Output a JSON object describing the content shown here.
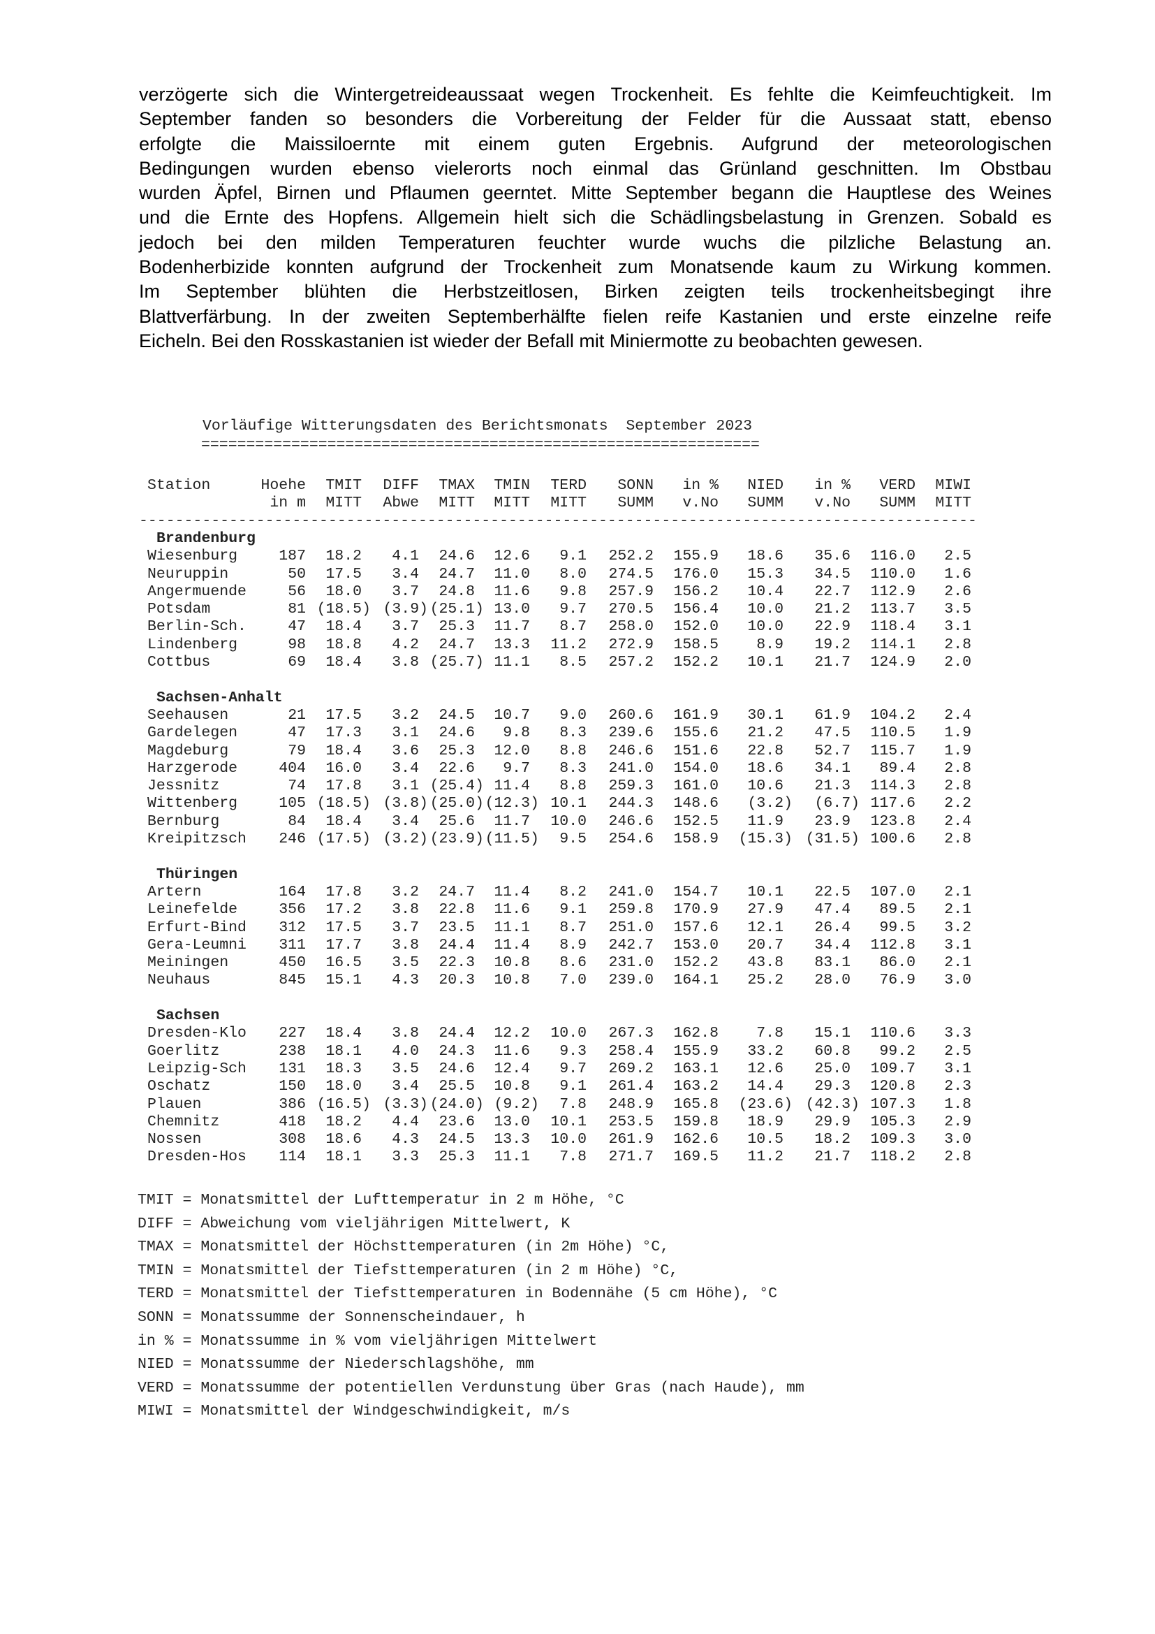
{
  "paragraph_lines": [
    "verzögerte sich die Wintergetreideaussaat wegen Trockenheit. Es fehlte die Keimfeuchtigkeit. Im",
    "September fanden so besonders die Vorbereitung der Felder für die Aussaat statt, ebenso",
    "erfolgte die Maissiloernte mit einem guten Ergebnis. Aufgrund der meteorologischen",
    "Bedingungen wurden ebenso vielerorts noch einmal das Grünland geschnitten. Im Obstbau",
    "wurden Äpfel, Birnen und Pflaumen geerntet. Mitte September begann die Hauptlese des Weines",
    "und die Ernte des Hopfens. Allgemein hielt sich die Schädlingsbelastung in Grenzen. Sobald es",
    "jedoch bei den milden Temperaturen feuchter wurde wuchs die pilzliche Belastung an.",
    "Bodenherbizide konnten aufgrund der Trockenheit zum Monatsende kaum zu Wirkung kommen.",
    "Im September blühten die Herbstzeitlosen, Birken zeigten teils trockenheitsbegingt ihre",
    "Blattverfärbung. In der zweiten Septemberhälfte fielen reife Kastanien und erste einzelne reife",
    "Eicheln. Bei den Rosskastanien ist wieder der Befall mit Miniermotte zu beobachten gewesen."
  ],
  "table": {
    "title": "Vorläufige Witterungsdaten des Berichtsmonats  September 2023",
    "underline": "==============================================================",
    "separator": "---------------------------------------------------------------------------------------------",
    "header_row1": [
      "Station",
      "Hoehe",
      "TMIT",
      "DIFF",
      "TMAX",
      "TMIN",
      "TERD",
      "SONN",
      "in %",
      "NIED",
      "in %",
      "VERD",
      "MIWI"
    ],
    "header_row2": [
      "",
      "in m",
      "MITT",
      "Abwe",
      "MITT",
      "MITT",
      "MITT",
      "SUMM",
      "v.No",
      "SUMM",
      "v.No",
      "SUMM",
      "MITT"
    ],
    "groups": [
      {
        "name": "Brandenburg",
        "rows": [
          [
            "Wiesenburg",
            "187",
            "18.2",
            "4.1",
            "24.6",
            "12.6",
            "9.1",
            "252.2",
            "155.9",
            "18.6",
            "35.6",
            "116.0",
            "2.5"
          ],
          [
            "Neuruppin",
            "50",
            "17.5",
            "3.4",
            "24.7",
            "11.0",
            "8.0",
            "274.5",
            "176.0",
            "15.3",
            "34.5",
            "110.0",
            "1.6"
          ],
          [
            "Angermuende",
            "56",
            "18.0",
            "3.7",
            "24.8",
            "11.6",
            "9.8",
            "257.9",
            "156.2",
            "10.4",
            "22.7",
            "112.9",
            "2.6"
          ],
          [
            "Potsdam",
            "81",
            "(18.5)",
            "(3.9)",
            "(25.1)",
            "13.0",
            "9.7",
            "270.5",
            "156.4",
            "10.0",
            "21.2",
            "113.7",
            "3.5"
          ],
          [
            "Berlin-Sch.",
            "47",
            "18.4",
            "3.7",
            "25.3",
            "11.7",
            "8.7",
            "258.0",
            "152.0",
            "10.0",
            "22.9",
            "118.4",
            "3.1"
          ],
          [
            "Lindenberg",
            "98",
            "18.8",
            "4.2",
            "24.7",
            "13.3",
            "11.2",
            "272.9",
            "158.5",
            "8.9",
            "19.2",
            "114.1",
            "2.8"
          ],
          [
            "Cottbus",
            "69",
            "18.4",
            "3.8",
            "(25.7)",
            "11.1",
            "8.5",
            "257.2",
            "152.2",
            "10.1",
            "21.7",
            "124.9",
            "2.0"
          ]
        ]
      },
      {
        "name": "Sachsen-Anhalt",
        "rows": [
          [
            "Seehausen",
            "21",
            "17.5",
            "3.2",
            "24.5",
            "10.7",
            "9.0",
            "260.6",
            "161.9",
            "30.1",
            "61.9",
            "104.2",
            "2.4"
          ],
          [
            "Gardelegen",
            "47",
            "17.3",
            "3.1",
            "24.6",
            "9.8",
            "8.3",
            "239.6",
            "155.6",
            "21.2",
            "47.5",
            "110.5",
            "1.9"
          ],
          [
            "Magdeburg",
            "79",
            "18.4",
            "3.6",
            "25.3",
            "12.0",
            "8.8",
            "246.6",
            "151.6",
            "22.8",
            "52.7",
            "115.7",
            "1.9"
          ],
          [
            "Harzgerode",
            "404",
            "16.0",
            "3.4",
            "22.6",
            "9.7",
            "8.3",
            "241.0",
            "154.0",
            "18.6",
            "34.1",
            "89.4",
            "2.8"
          ],
          [
            "Jessnitz",
            "74",
            "17.8",
            "3.1",
            "(25.4)",
            "11.4",
            "8.8",
            "259.3",
            "161.0",
            "10.6",
            "21.3",
            "114.3",
            "2.8"
          ],
          [
            "Wittenberg",
            "105",
            "(18.5)",
            "(3.8)",
            "(25.0)",
            "(12.3)",
            "10.1",
            "244.3",
            "148.6",
            "(3.2)",
            "(6.7)",
            "117.6",
            "2.2"
          ],
          [
            "Bernburg",
            "84",
            "18.4",
            "3.4",
            "25.6",
            "11.7",
            "10.0",
            "246.6",
            "152.5",
            "11.9",
            "23.9",
            "123.8",
            "2.4"
          ],
          [
            "Kreipitzsch",
            "246",
            "(17.5)",
            "(3.2)",
            "(23.9)",
            "(11.5)",
            "9.5",
            "254.6",
            "158.9",
            "(15.3)",
            "(31.5)",
            "100.6",
            "2.8"
          ]
        ]
      },
      {
        "name": "Thüringen",
        "rows": [
          [
            "Artern",
            "164",
            "17.8",
            "3.2",
            "24.7",
            "11.4",
            "8.2",
            "241.0",
            "154.7",
            "10.1",
            "22.5",
            "107.0",
            "2.1"
          ],
          [
            "Leinefelde",
            "356",
            "17.2",
            "3.8",
            "22.8",
            "11.6",
            "9.1",
            "259.8",
            "170.9",
            "27.9",
            "47.4",
            "89.5",
            "2.1"
          ],
          [
            "Erfurt-Bind",
            "312",
            "17.5",
            "3.7",
            "23.5",
            "11.1",
            "8.7",
            "251.0",
            "157.6",
            "12.1",
            "26.4",
            "99.5",
            "3.2"
          ],
          [
            "Gera-Leumni",
            "311",
            "17.7",
            "3.8",
            "24.4",
            "11.4",
            "8.9",
            "242.7",
            "153.0",
            "20.7",
            "34.4",
            "112.8",
            "3.1"
          ],
          [
            "Meiningen",
            "450",
            "16.5",
            "3.5",
            "22.3",
            "10.8",
            "8.6",
            "231.0",
            "152.2",
            "43.8",
            "83.1",
            "86.0",
            "2.1"
          ],
          [
            "Neuhaus",
            "845",
            "15.1",
            "4.3",
            "20.3",
            "10.8",
            "7.0",
            "239.0",
            "164.1",
            "25.2",
            "28.0",
            "76.9",
            "3.0"
          ]
        ]
      },
      {
        "name": "Sachsen",
        "rows": [
          [
            "Dresden-Klo",
            "227",
            "18.4",
            "3.8",
            "24.4",
            "12.2",
            "10.0",
            "267.3",
            "162.8",
            "7.8",
            "15.1",
            "110.6",
            "3.3"
          ],
          [
            "Goerlitz",
            "238",
            "18.1",
            "4.0",
            "24.3",
            "11.6",
            "9.3",
            "258.4",
            "155.9",
            "33.2",
            "60.8",
            "99.2",
            "2.5"
          ],
          [
            "Leipzig-Sch",
            "131",
            "18.3",
            "3.5",
            "24.6",
            "12.4",
            "9.7",
            "269.2",
            "163.1",
            "12.6",
            "25.0",
            "109.7",
            "3.1"
          ],
          [
            "Oschatz",
            "150",
            "18.0",
            "3.4",
            "25.5",
            "10.8",
            "9.1",
            "261.4",
            "163.2",
            "14.4",
            "29.3",
            "120.8",
            "2.3"
          ],
          [
            "Plauen",
            "386",
            "(16.5)",
            "(3.3)",
            "(24.0)",
            "(9.2)",
            "7.8",
            "248.9",
            "165.8",
            "(23.6)",
            "(42.3)",
            "107.3",
            "1.8"
          ],
          [
            "Chemnitz",
            "418",
            "18.2",
            "4.4",
            "23.6",
            "13.0",
            "10.1",
            "253.5",
            "159.8",
            "18.9",
            "29.9",
            "105.3",
            "2.9"
          ],
          [
            "Nossen",
            "308",
            "18.6",
            "4.3",
            "24.5",
            "13.3",
            "10.0",
            "261.9",
            "162.6",
            "10.5",
            "18.2",
            "109.3",
            "3.0"
          ],
          [
            "Dresden-Hos",
            "114",
            "18.1",
            "3.3",
            "25.3",
            "11.1",
            "7.8",
            "271.7",
            "169.5",
            "11.2",
            "21.7",
            "118.2",
            "2.8"
          ]
        ]
      }
    ]
  },
  "legend": [
    "TMIT = Monatsmittel der Lufttemperatur in 2 m Höhe, °C",
    "DIFF = Abweichung vom vieljährigen Mittelwert, K",
    "TMAX = Monatsmittel der Höchsttemperaturen (in 2m Höhe) °C,",
    "TMIN = Monatsmittel der Tiefsttemperaturen (in 2 m Höhe) °C,",
    "TERD = Monatsmittel der Tiefsttemperaturen in Bodennähe (5 cm Höhe), °C",
    "SONN = Monatssumme der Sonnenscheindauer, h",
    "in % = Monatssumme in % vom vieljährigen Mittelwert",
    "NIED = Monatssumme der Niederschlagshöhe, mm",
    "VERD = Monatssumme der potentiellen Verdunstung über Gras (nach Haude), mm",
    "MIWI = Monatsmittel der Windgeschwindigkeit, m/s"
  ]
}
